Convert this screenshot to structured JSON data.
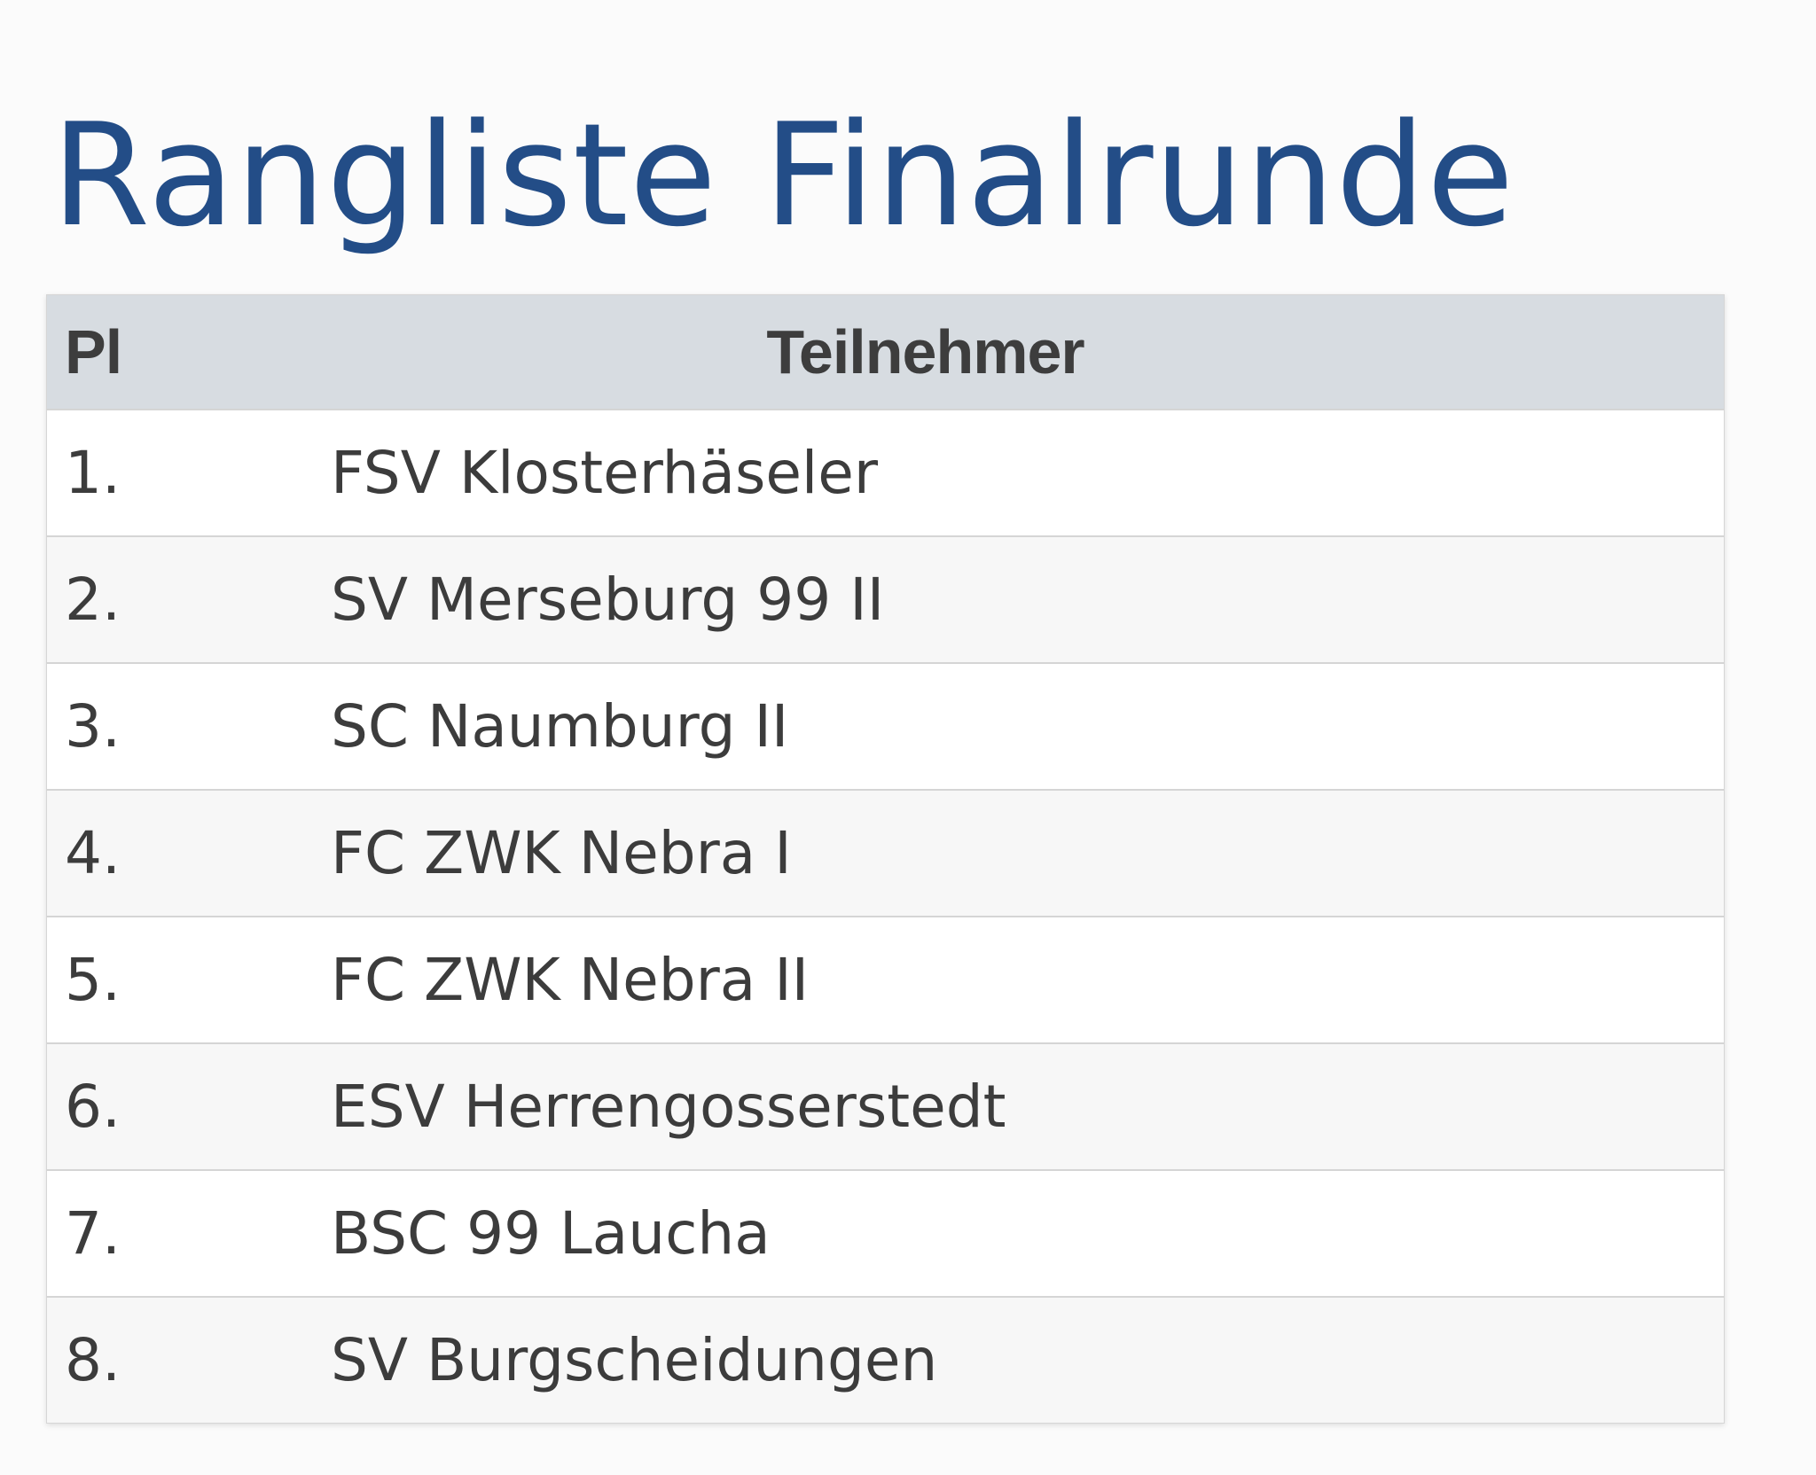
{
  "title": "Rangliste Finalrunde",
  "table": {
    "headers": {
      "place": "Pl",
      "participant": "Teilnehmer"
    },
    "rows": [
      {
        "rank": "1.",
        "team": "FSV Klosterhäseler"
      },
      {
        "rank": "2.",
        "team": "SV Merseburg 99 II"
      },
      {
        "rank": "3.",
        "team": "SC Naumburg II"
      },
      {
        "rank": "4.",
        "team": "FC ZWK Nebra I"
      },
      {
        "rank": "5.",
        "team": "FC ZWK Nebra II"
      },
      {
        "rank": "6.",
        "team": "ESV Herrengosserstedt"
      },
      {
        "rank": "7.",
        "team": "BSC 99 Laucha"
      },
      {
        "rank": "8.",
        "team": "SV Burgscheidungen"
      }
    ]
  },
  "colors": {
    "title": "#234d87",
    "header_background": "#d7dce1",
    "text": "#3c3c3c"
  }
}
